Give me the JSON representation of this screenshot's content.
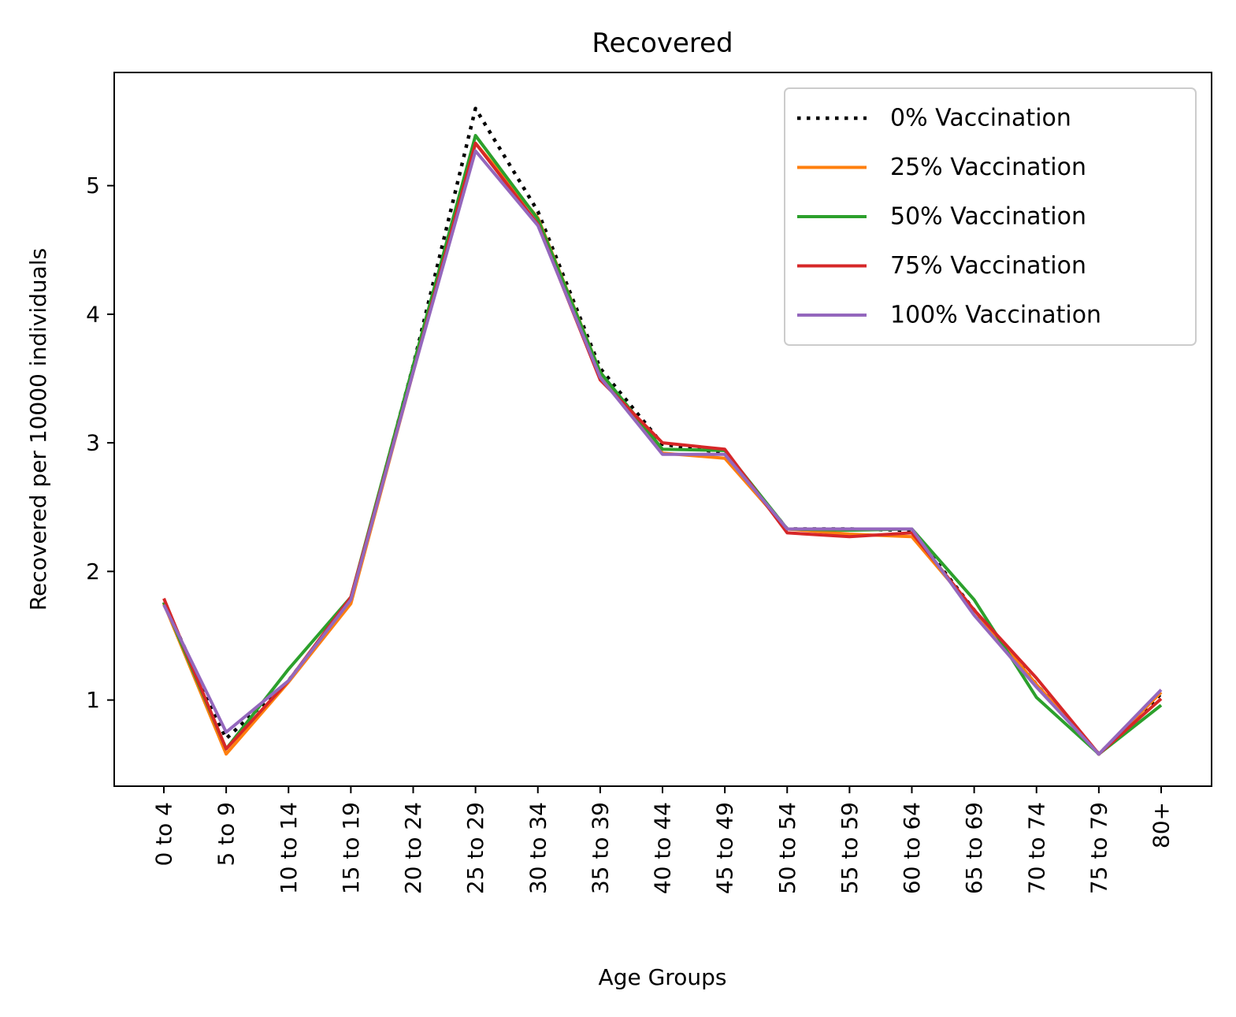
{
  "chart_data": {
    "type": "line",
    "title": "Recovered",
    "xlabel": "Age Groups",
    "ylabel": "Recovered per 10000 individuals",
    "categories": [
      "0 to 4",
      "5 to 9",
      "10 to 14",
      "15 to 19",
      "20 to 24",
      "25 to 29",
      "30 to 34",
      "35 to 39",
      "40 to 44",
      "45 to 49",
      "50 to 54",
      "55 to 59",
      "60 to 64",
      "65 to 69",
      "70 to 74",
      "75 to 79",
      "80+"
    ],
    "ylim": [
      0.33,
      5.88
    ],
    "yticks": [
      1,
      2,
      3,
      4,
      5
    ],
    "grid": false,
    "legend_position": "top-right",
    "series": [
      {
        "name": "0% Vaccination",
        "color": "#000000",
        "style": "dotted",
        "values": [
          1.76,
          0.7,
          1.15,
          1.78,
          3.6,
          5.6,
          4.8,
          3.58,
          2.99,
          2.92,
          2.33,
          2.33,
          2.32,
          1.7,
          1.12,
          0.58,
          1.05
        ]
      },
      {
        "name": "25% Vaccination",
        "color": "#ff7f0e",
        "style": "solid",
        "values": [
          1.75,
          0.58,
          1.14,
          1.75,
          3.55,
          5.33,
          4.75,
          3.55,
          2.92,
          2.88,
          2.33,
          2.29,
          2.27,
          1.7,
          1.12,
          0.58,
          1.06
        ]
      },
      {
        "name": "50% Vaccination",
        "color": "#2ca02c",
        "style": "solid",
        "values": [
          1.76,
          0.62,
          1.24,
          1.8,
          3.6,
          5.39,
          4.74,
          3.55,
          2.95,
          2.94,
          2.33,
          2.32,
          2.33,
          1.78,
          1.02,
          0.58,
          0.96
        ]
      },
      {
        "name": "75% Vaccination",
        "color": "#d62728",
        "style": "solid",
        "values": [
          1.79,
          0.62,
          1.15,
          1.8,
          3.55,
          5.33,
          4.7,
          3.49,
          3.0,
          2.95,
          2.3,
          2.27,
          2.3,
          1.7,
          1.17,
          0.58,
          1.01
        ]
      },
      {
        "name": "100% Vaccination",
        "color": "#9467bd",
        "style": "solid",
        "values": [
          1.74,
          0.75,
          1.15,
          1.78,
          3.55,
          5.27,
          4.69,
          3.51,
          2.91,
          2.91,
          2.33,
          2.33,
          2.33,
          1.66,
          1.1,
          0.58,
          1.08
        ]
      }
    ]
  }
}
